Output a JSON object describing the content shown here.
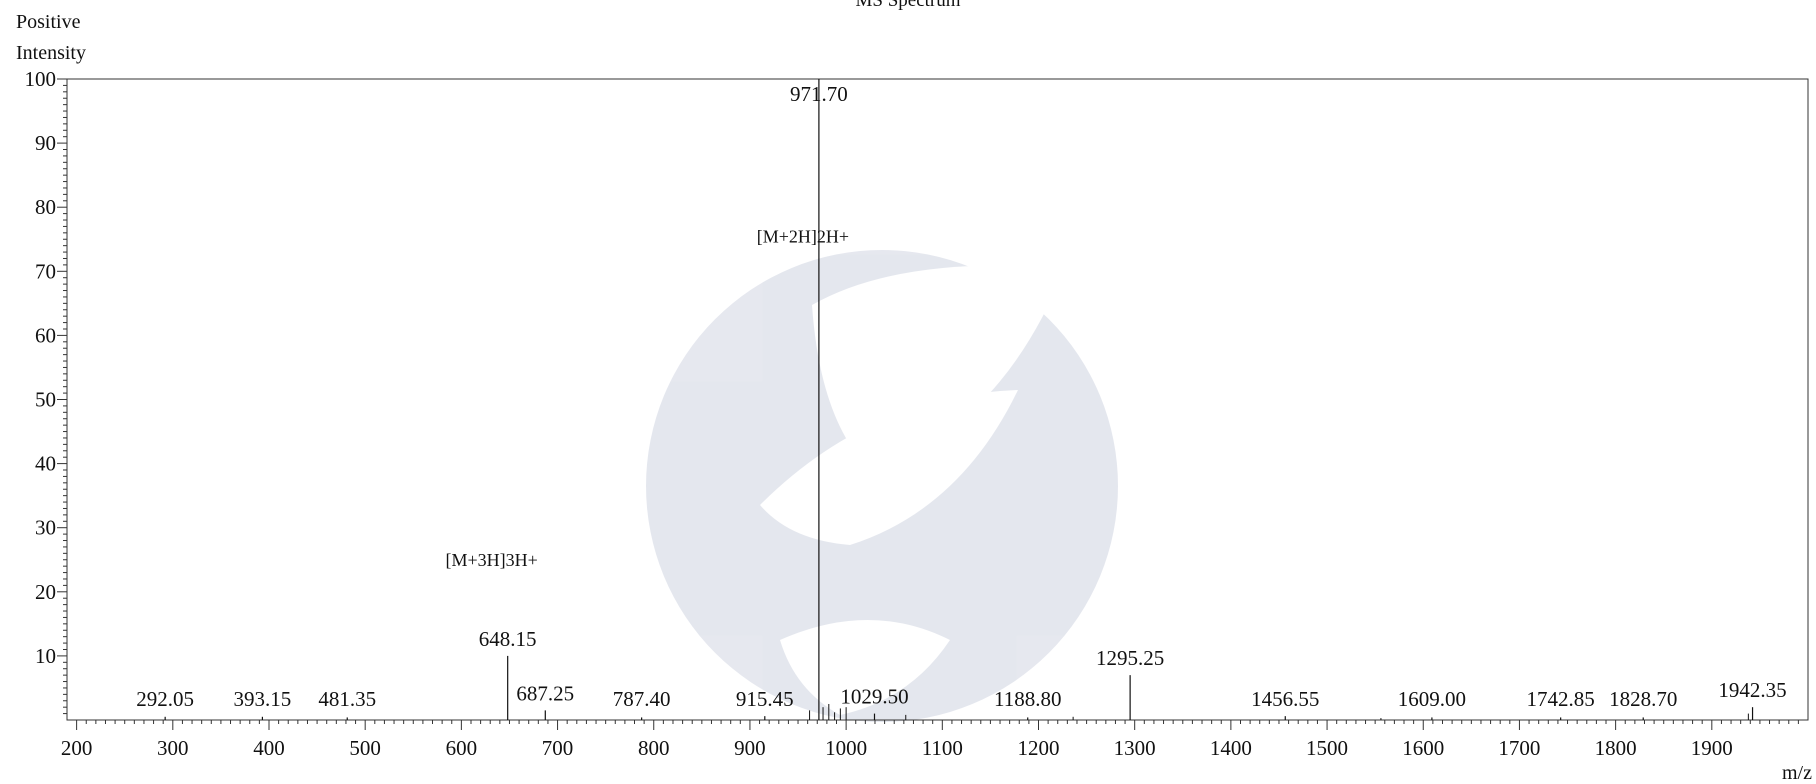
{
  "chart_data": {
    "type": "bar",
    "title": "MS Spectrum",
    "ylabel_line1": "Positive",
    "ylabel_line2": "Intensity",
    "xlabel": "m/z",
    "xlim": [
      190,
      2000
    ],
    "ylim": [
      0,
      100
    ],
    "x_ticks": [
      200,
      300,
      400,
      500,
      600,
      700,
      800,
      900,
      1000,
      1100,
      1200,
      1300,
      1400,
      1500,
      1600,
      1700,
      1800,
      1900
    ],
    "y_ticks": [
      10,
      20,
      30,
      40,
      50,
      60,
      70,
      80,
      90,
      100
    ],
    "grid": false,
    "peaks": [
      {
        "mz": 292.05,
        "intensity": 0.5,
        "label": "292.05"
      },
      {
        "mz": 393.15,
        "intensity": 0.5,
        "label": "393.15"
      },
      {
        "mz": 481.35,
        "intensity": 0.4,
        "label": "481.35"
      },
      {
        "mz": 648.15,
        "intensity": 10.0,
        "label": "648.15"
      },
      {
        "mz": 687.25,
        "intensity": 1.5,
        "label": "687.25"
      },
      {
        "mz": 787.4,
        "intensity": 0.4,
        "label": "787.40"
      },
      {
        "mz": 915.45,
        "intensity": 0.6,
        "label": "915.45"
      },
      {
        "mz": 971.7,
        "intensity": 100.0,
        "label": "971.70"
      },
      {
        "mz": 1029.5,
        "intensity": 1.0,
        "label": "1029.50"
      },
      {
        "mz": 1188.8,
        "intensity": 0.4,
        "label": "1188.80"
      },
      {
        "mz": 1295.25,
        "intensity": 7.0,
        "label": "1295.25"
      },
      {
        "mz": 1456.55,
        "intensity": 0.6,
        "label": "1456.55"
      },
      {
        "mz": 1609.0,
        "intensity": 0.4,
        "label": "1609.00"
      },
      {
        "mz": 1742.85,
        "intensity": 0.4,
        "label": "1742.85"
      },
      {
        "mz": 1828.7,
        "intensity": 0.4,
        "label": "1828.70"
      },
      {
        "mz": 1942.35,
        "intensity": 2.0,
        "label": "1942.35"
      }
    ],
    "minor_peaks": [
      {
        "mz": 962.0,
        "intensity": 1.5
      },
      {
        "mz": 976.0,
        "intensity": 2.0
      },
      {
        "mz": 982.0,
        "intensity": 2.5
      },
      {
        "mz": 988.0,
        "intensity": 1.2
      },
      {
        "mz": 994.0,
        "intensity": 1.8
      },
      {
        "mz": 1000.0,
        "intensity": 2.0
      },
      {
        "mz": 1062.0,
        "intensity": 0.8
      },
      {
        "mz": 1236.0,
        "intensity": 0.5
      },
      {
        "mz": 1556.0,
        "intensity": 0.3
      },
      {
        "mz": 1938.0,
        "intensity": 1.0
      }
    ],
    "annotations": [
      {
        "text": "[M+2H]2H+",
        "mz": 971.7,
        "intensity": 74.5
      },
      {
        "text": "[M+3H]3H+",
        "mz": 648.15,
        "intensity": 24.0
      }
    ]
  }
}
